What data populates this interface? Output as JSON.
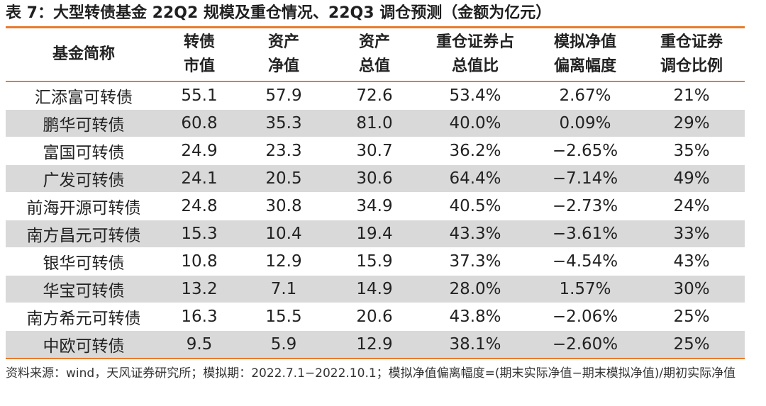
{
  "title": "表 7：大型转债基金 22Q2 规模及重仓情况、22Q3 调仓预测（金额为亿元）",
  "headers": [
    [
      "基金简称",
      ""
    ],
    [
      "转债",
      "市值"
    ],
    [
      "资产",
      "净值"
    ],
    [
      "资产",
      "总值"
    ],
    [
      "重仓证券占",
      "总值比"
    ],
    [
      "模拟净值",
      "偏离幅度"
    ],
    [
      "重仓证券",
      "调仓比例"
    ]
  ],
  "rows": [
    [
      "汇添富可转债",
      "55.1",
      "57.9",
      "72.6",
      "53.4%",
      "2.67%",
      "21%"
    ],
    [
      "鹏华可转债",
      "60.8",
      "35.3",
      "81.0",
      "40.0%",
      "0.09%",
      "29%"
    ],
    [
      "富国可转债",
      "24.9",
      "23.3",
      "30.7",
      "36.2%",
      "−2.65%",
      "35%"
    ],
    [
      "广发可转债",
      "24.1",
      "20.5",
      "30.6",
      "64.4%",
      "−7.14%",
      "49%"
    ],
    [
      "前海开源可转债",
      "24.8",
      "30.8",
      "34.9",
      "40.5%",
      "−2.73%",
      "24%"
    ],
    [
      "南方昌元可转债",
      "15.3",
      "10.4",
      "19.4",
      "43.3%",
      "−3.61%",
      "33%"
    ],
    [
      "银华可转债",
      "10.8",
      "12.9",
      "15.9",
      "37.3%",
      "−4.54%",
      "43%"
    ],
    [
      "华宝可转债",
      "13.2",
      "7.1",
      "14.9",
      "28.0%",
      "1.57%",
      "30%"
    ],
    [
      "南方希元可转债",
      "16.3",
      "15.5",
      "20.6",
      "43.8%",
      "−2.06%",
      "25%"
    ],
    [
      "中欧可转债",
      "9.5",
      "5.9",
      "12.9",
      "38.1%",
      "−2.60%",
      "25%"
    ]
  ],
  "source": "资料来源：wind，天风证券研究所；模拟期：2022.7.1−2022.10.1；模拟净值偏离幅度=(期末实际净值−期末模拟净值)/期初实际净值"
}
